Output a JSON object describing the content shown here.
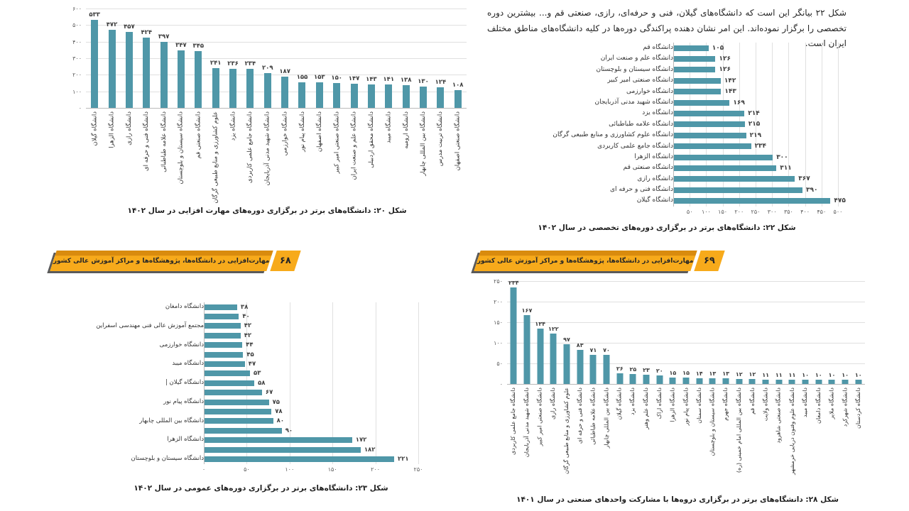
{
  "page": {
    "intro_paragraph": "شکل ۲۲ بیانگر این است که دانشگاه‌های گیلان، فنی و حرفه‌ای، رازی، صنعتی قم و... بیشترین دوره تخصصی را برگزار نموده‌اند. این امر نشان دهنده پراکندگی دوره‌ها در کلیه دانشگاه‌های مناطق مختلف ایران است.",
    "banners": [
      {
        "label": "مهارت‌افزایی در دانشگاه‌ها، پژوهشگاه‌ها و مراکز آموزش عالی کشور",
        "page_number": "۶۸"
      },
      {
        "label": "مهارت‌افزایی در دانشگاه‌ها، پژوهشگاه‌ها و مراکز آموزش عالی کشور",
        "page_number": "۶۹"
      }
    ],
    "colors": {
      "bar": "#4f97a8",
      "banner_orange": "#f7aa1b",
      "banner_dark_orange": "#d98b0e",
      "banner_shadow": "#5a5a5a",
      "gridline": "#e0e0e0"
    },
    "numeral_system": "persian"
  },
  "chart_data": [
    {
      "type": "bar",
      "caption": "شکل ۲۰: دانشگاه‌های برتر در برگزاری دوره‌های مهارت افزایی در سال ۱۴۰۲",
      "categories": [
        "دانشگاه گیلان",
        "دانشگاه الزهرا",
        "دانشگاه رازی",
        "دانشگاه فنی و حرفه ای",
        "دانشگاه علامه طباطبائی",
        "دانشگاه سیستان و بلوچستان",
        "دانشگاه صنعتی قم",
        "علوم کشاورزی و منابع طبیعی گرگان",
        "دانشگاه یزد",
        "دانشگاه جامع علمی کاربردی",
        "دانشگاه شهید مدنی آذربایجان",
        "دانشگاه خوارزمی",
        "دانشگاه پیام نور",
        "دانشگاه اصفهان",
        "دانشگاه صنعتی امیر کبیر",
        "دانشگاه علم و صنعت ایران",
        "دانشگاه محقق اردبیلی",
        "دانشگاه میبد",
        "دانشگاه ارومیه",
        "دانشگاه بین المللی چابهار",
        "دانشگاه تربیت مدرس",
        "دانشگاه صنعتی اصفهان"
      ],
      "values": [
        533,
        472,
        457,
        424,
        397,
        347,
        345,
        241,
        236,
        234,
        209,
        187,
        155,
        153,
        150,
        147,
        143,
        141,
        138,
        130,
        124,
        108
      ],
      "ylabel": "",
      "xlabel": "",
      "ylim": [
        0,
        600
      ],
      "yticks": [
        0,
        100,
        200,
        300,
        400,
        500,
        600
      ],
      "grid": true,
      "legend": false
    },
    {
      "type": "bar-horizontal",
      "caption": "شکل ۲۲: دانشگاه‌های برتر در برگزاری دوره‌های  تخصصی در سال ۱۴۰۲",
      "categories": [
        "دانشگاه قم",
        "دانشگاه علم و صنعت ایران",
        "دانشگاه سیستان و بلوچستان",
        "دانشگاه صنعتی امیر کبیر",
        "دانشگاه خوارزمی",
        "دانشگاه شهید مدنی آذربایجان",
        "دانشگاه یزد",
        "دانشگاه علامه طباطبائی",
        "دانشگاه علوم کشاورزی و منابع طبیعی گرگان",
        "دانشگاه جامع علمی کاربردی",
        "دانشگاه الزهرا",
        "دانشگاه صنعتی قم",
        "دانشگاه رازی",
        "دانشگاه فنی و حرفه ای",
        "دانشگاه گیلان"
      ],
      "values": [
        105,
        126,
        126,
        142,
        143,
        169,
        214,
        215,
        219,
        234,
        300,
        311,
        367,
        390,
        475
      ],
      "ylabel": "",
      "xlabel": "",
      "xlim": [
        0,
        500
      ],
      "xticks": [
        50,
        100,
        150,
        200,
        250,
        300,
        350,
        400,
        450,
        500
      ],
      "grid": true,
      "legend": false
    },
    {
      "type": "bar-horizontal",
      "caption": "شکل ۲۳: دانشگاه‌های برتر در برگزاری دوره‌های عمومی در سال ۱۴۰۲",
      "categories": [
        "دانشگاه دامغان",
        "",
        "مجتمع آموزش عالی فنی مهندسی اسفراین",
        "",
        "دانشگاه خوارزمی",
        "",
        "دانشگاه میبد",
        "",
        "دانشگاه گیلان |",
        "",
        "دانشگاه پیام نور",
        "",
        "دانشگاه بین المللی چابهار",
        "",
        "دانشگاه الزهرا",
        "",
        "دانشگاه سیستان و بلوچستان"
      ],
      "values": [
        38,
        40,
        42,
        42,
        44,
        45,
        47,
        53,
        58,
        67,
        75,
        78,
        80,
        90,
        172,
        182,
        221
      ],
      "ylabel": "",
      "xlabel": "",
      "xlim": [
        0,
        250
      ],
      "xticks": [
        0,
        50,
        100,
        150,
        200,
        250
      ],
      "grid": true,
      "legend": false
    },
    {
      "type": "bar",
      "caption": "شکل ۲۸: دانشگاه‌های برتر در برگزاری دروه‌ها با مشارکت واحدهای صنعتی در سال ۱۴۰۱",
      "categories": [
        "دانشگاه جامع علمی کاربردی",
        "دانشگاه شهید مدنی آذربایجان",
        "دانشگاه صنعتی امیر کبیر",
        "دانشگاه رازی",
        "علوم کشاورزی و منابع طبیعی گرگان",
        "دانشگاه فنی و حرفه ای",
        "دانشگاه علامه طباطبائی",
        "دانشگاه بین المللی چابهار",
        "دانشگاه گیلان",
        "دانشگاه یزد",
        "دانشگاه علم وهنر",
        "دانشگاه اراک",
        "دانشگاه الزهرا",
        "دانشگاه پیام نور",
        "دانشگاه سمنان",
        "دانشگاه سیستان و بلوچستان",
        "دانشگاه جهرم",
        "دانشگاه بین المللی امام خمینی (ره)",
        "دانشگاه قم",
        "دانشگاه ولایت",
        "دانشگاه صنعتی شاهرود",
        "دانشگاه علوم وفنون دریایی خرمشهر",
        "دانشگاه میبد",
        "دانشگاه دامغان",
        "دانشگاه ملایر",
        "دانشگاه شهرکرد",
        "دانشگاه کردستان"
      ],
      "values": [
        234,
        167,
        134,
        122,
        97,
        83,
        71,
        70,
        26,
        25,
        23,
        20,
        15,
        15,
        14,
        13,
        13,
        12,
        12,
        11,
        11,
        11,
        10,
        10,
        10,
        10,
        10
      ],
      "ylabel": "",
      "xlabel": "",
      "ylim": [
        0,
        250
      ],
      "yticks": [
        0,
        50,
        100,
        150,
        200,
        250
      ],
      "grid": true,
      "legend": false
    }
  ]
}
